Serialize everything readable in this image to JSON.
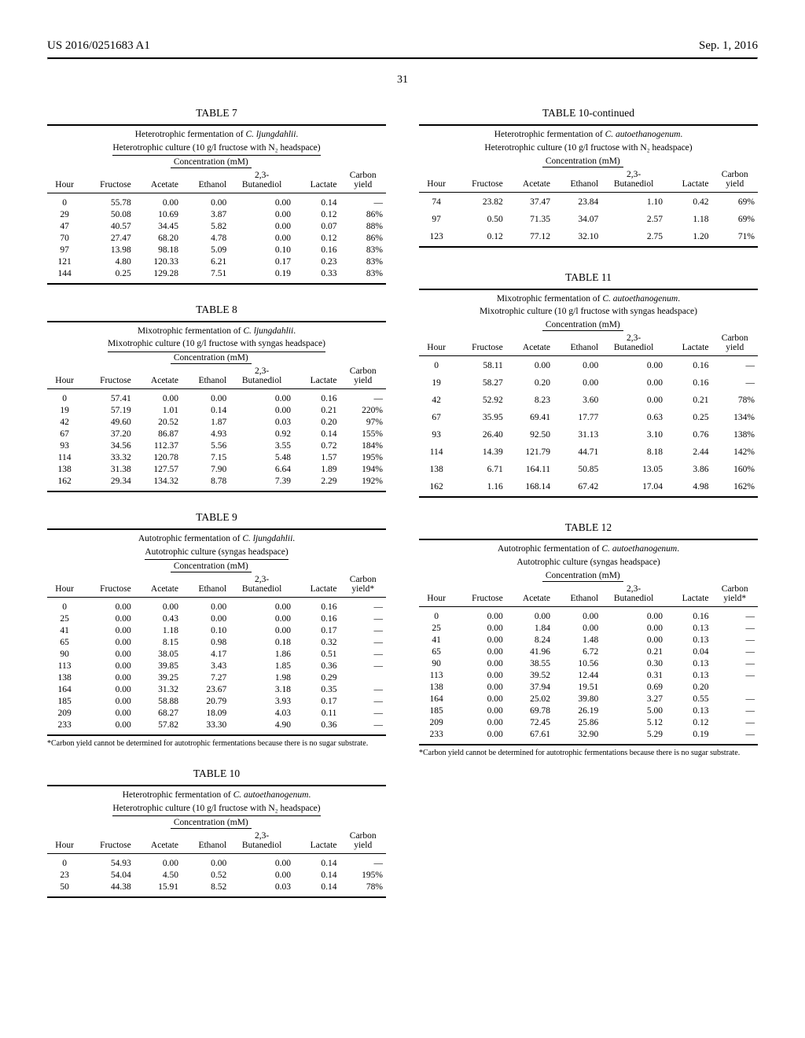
{
  "header": {
    "pubnum": "US 2016/0251683 A1",
    "pubdate": "Sep. 1, 2016",
    "pagenum": "31"
  },
  "concentration_label": "Concentration (mM)",
  "col_labels": {
    "hour": "Hour",
    "fructose": "Fructose",
    "acetate": "Acetate",
    "ethanol": "Ethanol",
    "butanediol_top": "2,3-",
    "butanediol_bot": "Butanediol",
    "lactate": "Lactate",
    "carbon_top": "Carbon",
    "carbon_bot": "yield",
    "carbon_bot_star": "yield*"
  },
  "tables": {
    "t7": {
      "title": "TABLE 7",
      "caption_line1_a": "Heterotrophic fermentation of ",
      "caption_line1_i": "C. ljungdahlii",
      "caption_line1_b": ".",
      "caption_line2": "Heterotrophic culture (10 g/l fructose with N₂ headspace)",
      "rows": [
        [
          "0",
          "55.78",
          "0.00",
          "0.00",
          "0.00",
          "0.14",
          "—"
        ],
        [
          "29",
          "50.08",
          "10.69",
          "3.87",
          "0.00",
          "0.12",
          "86%"
        ],
        [
          "47",
          "40.57",
          "34.45",
          "5.82",
          "0.00",
          "0.07",
          "88%"
        ],
        [
          "70",
          "27.47",
          "68.20",
          "4.78",
          "0.00",
          "0.12",
          "86%"
        ],
        [
          "97",
          "13.98",
          "98.18",
          "5.09",
          "0.10",
          "0.16",
          "83%"
        ],
        [
          "121",
          "4.80",
          "120.33",
          "6.21",
          "0.17",
          "0.23",
          "83%"
        ],
        [
          "144",
          "0.25",
          "129.28",
          "7.51",
          "0.19",
          "0.33",
          "83%"
        ]
      ]
    },
    "t8": {
      "title": "TABLE 8",
      "caption_line1_a": "Mixotrophic fermentation of ",
      "caption_line1_i": "C. ljungdahlii",
      "caption_line1_b": ".",
      "caption_line2": "Mixotrophic culture (10 g/l fructose with syngas headspace)",
      "rows": [
        [
          "0",
          "57.41",
          "0.00",
          "0.00",
          "0.00",
          "0.16",
          "—"
        ],
        [
          "19",
          "57.19",
          "1.01",
          "0.14",
          "0.00",
          "0.21",
          "220%"
        ],
        [
          "42",
          "49.60",
          "20.52",
          "1.87",
          "0.03",
          "0.20",
          "97%"
        ],
        [
          "67",
          "37.20",
          "86.87",
          "4.93",
          "0.92",
          "0.14",
          "155%"
        ],
        [
          "93",
          "34.56",
          "112.37",
          "5.56",
          "3.55",
          "0.72",
          "184%"
        ],
        [
          "114",
          "33.32",
          "120.78",
          "7.15",
          "5.48",
          "1.57",
          "195%"
        ],
        [
          "138",
          "31.38",
          "127.57",
          "7.90",
          "6.64",
          "1.89",
          "194%"
        ],
        [
          "162",
          "29.34",
          "134.32",
          "8.78",
          "7.39",
          "2.29",
          "192%"
        ]
      ]
    },
    "t9": {
      "title": "TABLE 9",
      "caption_line1_a": "Autotrophic fermentation of ",
      "caption_line1_i": "C. ljungdahlii",
      "caption_line1_b": ".",
      "caption_line2": "Autotrophic culture (syngas headspace)",
      "rows": [
        [
          "0",
          "0.00",
          "0.00",
          "0.00",
          "0.00",
          "0.16",
          "—"
        ],
        [
          "25",
          "0.00",
          "0.43",
          "0.00",
          "0.00",
          "0.16",
          "—"
        ],
        [
          "41",
          "0.00",
          "1.18",
          "0.10",
          "0.00",
          "0.17",
          "—"
        ],
        [
          "65",
          "0.00",
          "8.15",
          "0.98",
          "0.18",
          "0.32",
          "—"
        ],
        [
          "90",
          "0.00",
          "38.05",
          "4.17",
          "1.86",
          "0.51",
          "—"
        ],
        [
          "113",
          "0.00",
          "39.85",
          "3.43",
          "1.85",
          "0.36",
          "—"
        ],
        [
          "138",
          "0.00",
          "39.25",
          "7.27",
          "1.98",
          "0.29",
          ""
        ],
        [
          "164",
          "0.00",
          "31.32",
          "23.67",
          "3.18",
          "0.35",
          "—"
        ],
        [
          "185",
          "0.00",
          "58.88",
          "20.79",
          "3.93",
          "0.17",
          "—"
        ],
        [
          "209",
          "0.00",
          "68.27",
          "18.09",
          "4.03",
          "0.11",
          "—"
        ],
        [
          "233",
          "0.00",
          "57.82",
          "33.30",
          "4.90",
          "0.36",
          "—"
        ]
      ],
      "footnote": "*Carbon yield cannot be determined for autotrophic fermentations because there is no sugar substrate."
    },
    "t10": {
      "title": "TABLE 10",
      "caption_line1_a": "Heterotrophic fermentation of ",
      "caption_line1_i": "C. autoethanogenum",
      "caption_line1_b": ".",
      "caption_line2": "Heterotrophic culture (10 g/l fructose with N₂ headspace)",
      "rows": [
        [
          "0",
          "54.93",
          "0.00",
          "0.00",
          "0.00",
          "0.14",
          "—"
        ],
        [
          "23",
          "54.04",
          "4.50",
          "0.52",
          "0.00",
          "0.14",
          "195%"
        ],
        [
          "50",
          "44.38",
          "15.91",
          "8.52",
          "0.03",
          "0.14",
          "78%"
        ]
      ]
    },
    "t10c": {
      "title": "TABLE 10-continued",
      "caption_line1_a": "Heterotrophic fermentation of ",
      "caption_line1_i": "C. autoethanogenum",
      "caption_line1_b": ".",
      "caption_line2": "Heterotrophic culture (10 g/l fructose with N₂ headspace)",
      "rows": [
        [
          "74",
          "23.82",
          "37.47",
          "23.84",
          "1.10",
          "0.42",
          "69%"
        ],
        [
          "97",
          "0.50",
          "71.35",
          "34.07",
          "2.57",
          "1.18",
          "69%"
        ],
        [
          "123",
          "0.12",
          "77.12",
          "32.10",
          "2.75",
          "1.20",
          "71%"
        ]
      ]
    },
    "t11": {
      "title": "TABLE 11",
      "caption_line1_a": "Mixotrophic fermentation of ",
      "caption_line1_i": "C. autoethanogenum",
      "caption_line1_b": ".",
      "caption_line2": "Mixotrophic culture (10 g/l fructose with syngas headspace)",
      "rows": [
        [
          "0",
          "58.11",
          "0.00",
          "0.00",
          "0.00",
          "0.16",
          "—"
        ],
        [
          "19",
          "58.27",
          "0.20",
          "0.00",
          "0.00",
          "0.16",
          "—"
        ],
        [
          "42",
          "52.92",
          "8.23",
          "3.60",
          "0.00",
          "0.21",
          "78%"
        ],
        [
          "67",
          "35.95",
          "69.41",
          "17.77",
          "0.63",
          "0.25",
          "134%"
        ],
        [
          "93",
          "26.40",
          "92.50",
          "31.13",
          "3.10",
          "0.76",
          "138%"
        ],
        [
          "114",
          "14.39",
          "121.79",
          "44.71",
          "8.18",
          "2.44",
          "142%"
        ],
        [
          "138",
          "6.71",
          "164.11",
          "50.85",
          "13.05",
          "3.86",
          "160%"
        ],
        [
          "162",
          "1.16",
          "168.14",
          "67.42",
          "17.04",
          "4.98",
          "162%"
        ]
      ]
    },
    "t12": {
      "title": "TABLE 12",
      "caption_line1_a": "Autotrophic fermentation of ",
      "caption_line1_i": "C. autoethanogenum",
      "caption_line1_b": ".",
      "caption_line2": "Autotrophic culture (syngas headspace)",
      "rows": [
        [
          "0",
          "0.00",
          "0.00",
          "0.00",
          "0.00",
          "0.16",
          "—"
        ],
        [
          "25",
          "0.00",
          "1.84",
          "0.00",
          "0.00",
          "0.13",
          "—"
        ],
        [
          "41",
          "0.00",
          "8.24",
          "1.48",
          "0.00",
          "0.13",
          "—"
        ],
        [
          "65",
          "0.00",
          "41.96",
          "6.72",
          "0.21",
          "0.04",
          "—"
        ],
        [
          "90",
          "0.00",
          "38.55",
          "10.56",
          "0.30",
          "0.13",
          "—"
        ],
        [
          "113",
          "0.00",
          "39.52",
          "12.44",
          "0.31",
          "0.13",
          "—"
        ],
        [
          "138",
          "0.00",
          "37.94",
          "19.51",
          "0.69",
          "0.20",
          ""
        ],
        [
          "164",
          "0.00",
          "25.02",
          "39.80",
          "3.27",
          "0.55",
          "—"
        ],
        [
          "185",
          "0.00",
          "69.78",
          "26.19",
          "5.00",
          "0.13",
          "—"
        ],
        [
          "209",
          "0.00",
          "72.45",
          "25.86",
          "5.12",
          "0.12",
          "—"
        ],
        [
          "233",
          "0.00",
          "67.61",
          "32.90",
          "5.29",
          "0.19",
          "—"
        ]
      ],
      "footnote": "*Carbon yield cannot be determined for autotrophic fermentations because there is no sugar substrate."
    }
  }
}
